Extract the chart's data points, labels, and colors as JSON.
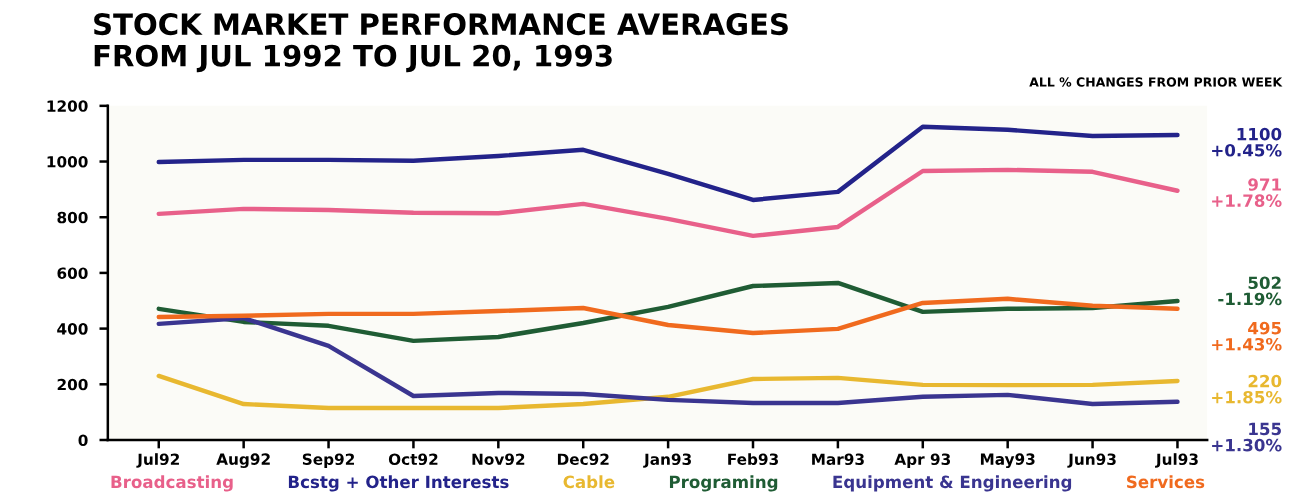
{
  "chart_data": {
    "type": "line",
    "title": "STOCK MARKET PERFORMANCE AVERAGES\nFROM JUL 1992 TO JUL 20, 1993",
    "subtitle": "ALL % CHANGES FROM PRIOR WEEK",
    "categories": [
      "Jul92",
      "Aug92",
      "Sep92",
      "Oct92",
      "Nov92",
      "Dec92",
      "Jan93",
      "Feb93",
      "Mar93",
      "Apr 93",
      "May93",
      "Jun93",
      "Jul93"
    ],
    "series": [
      {
        "name": "Broadcasting",
        "color": "#e8608a",
        "values": [
          812,
          830,
          826,
          816,
          814,
          848,
          794,
          733,
          765,
          966,
          970,
          963,
          895
        ]
      },
      {
        "name": "Bcstg + Other Interests",
        "color": "#23238a",
        "values": [
          998,
          1006,
          1006,
          1003,
          1020,
          1042,
          956,
          862,
          891,
          1125,
          1114,
          1092,
          1095
        ]
      },
      {
        "name": "Cable",
        "color": "#e8b830",
        "values": [
          230,
          129,
          115,
          115,
          115,
          129,
          155,
          219,
          223,
          198,
          197,
          198,
          212
        ]
      },
      {
        "name": "Programing",
        "color": "#1f5c34",
        "values": [
          471,
          424,
          410,
          356,
          370,
          420,
          478,
          553,
          564,
          460,
          471,
          474,
          499
        ]
      },
      {
        "name": "Equipment & Engineering",
        "color": "#3a3590",
        "values": [
          417,
          438,
          338,
          158,
          169,
          165,
          144,
          133,
          133,
          155,
          162,
          129,
          137
        ]
      },
      {
        "name": "Services",
        "color": "#f06a1e",
        "values": [
          442,
          446,
          453,
          453,
          463,
          474,
          413,
          384,
          399,
          492,
          507,
          482,
          471
        ]
      }
    ],
    "annotations": [
      "1100\n+0.45%",
      "971\n+1.78%",
      "502\n-1.19%",
      "495\n+1.43%",
      "220\n+1.85%",
      "155\n+1.30%"
    ],
    "ylim": [
      0,
      1200
    ],
    "yticks": [
      0,
      200,
      400,
      600,
      800,
      1000,
      1200
    ],
    "grid": false,
    "legend": "bottom",
    "marker": "none",
    "line_style": "solid"
  }
}
